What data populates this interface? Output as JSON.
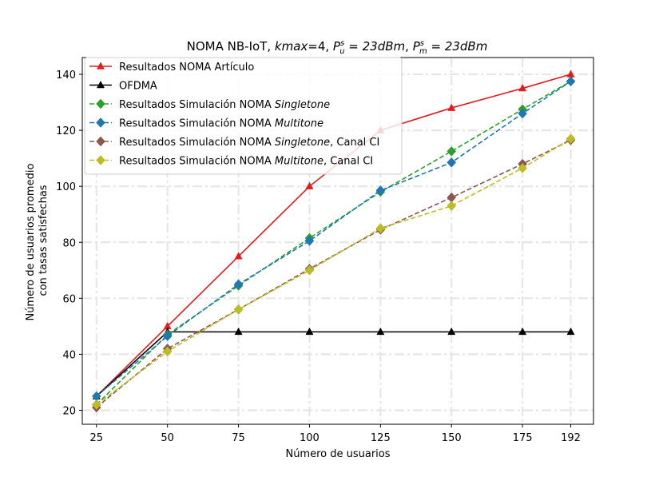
{
  "chart_data": {
    "type": "line",
    "title_main": "NOMA NB-IoT, ",
    "title_kmax": "kmax",
    "title_kmax_value": "=4, ",
    "title_pu": "P",
    "title_pu_sup": "s",
    "title_pu_sub": "u",
    "title_pu_value": " = 23dBm",
    "title_sep": ", ",
    "title_pm": "P",
    "title_pm_sup": "s",
    "title_pm_sub": "m",
    "title_pm_value": " = 23dBm",
    "xlabel": "Número de usuarios",
    "ylabel_line1": "Número de usuarios promedio",
    "ylabel_line2": "con tasas satisfechas",
    "x": [
      25,
      50,
      75,
      100,
      125,
      150,
      175,
      192
    ],
    "x_ticks": [
      "25",
      "50",
      "75",
      "100",
      "125",
      "150",
      "175",
      "192"
    ],
    "xlim": [
      20,
      200
    ],
    "ylim": [
      15,
      146
    ],
    "y_ticks": [
      20,
      40,
      60,
      80,
      100,
      120,
      140
    ],
    "grid": true,
    "legend_position": "upper left",
    "series": [
      {
        "name": "Resultados NOMA Artículo",
        "name_parts": [
          {
            "text": "Resultados NOMA Artículo",
            "italic": false
          }
        ],
        "color": "#e41a1c",
        "marker": "triangle",
        "dashed": false,
        "values": [
          25,
          50,
          75,
          100,
          120,
          128,
          135,
          140
        ]
      },
      {
        "name": "OFDMA",
        "name_parts": [
          {
            "text": "OFDMA",
            "italic": false
          }
        ],
        "color": "#000000",
        "marker": "triangle",
        "dashed": false,
        "values": [
          25,
          48,
          48,
          48,
          48,
          48,
          48,
          48
        ]
      },
      {
        "name": "Resultados Simulación NOMA Singletone",
        "name_parts": [
          {
            "text": "Resultados Simulación NOMA ",
            "italic": false
          },
          {
            "text": "Singletone",
            "italic": true
          }
        ],
        "color": "#2ca02c",
        "marker": "diamond",
        "dashed": true,
        "values": [
          22,
          47,
          64.5,
          81.5,
          98,
          112.5,
          127.5,
          137.5
        ]
      },
      {
        "name": "Resultados Simulación NOMA Multitone",
        "name_parts": [
          {
            "text": "Resultados Simulación NOMA ",
            "italic": false
          },
          {
            "text": "Multitone",
            "italic": true
          }
        ],
        "color": "#1f77b4",
        "marker": "diamond",
        "dashed": true,
        "values": [
          25,
          46.5,
          65,
          80.5,
          98.5,
          108.5,
          126,
          137.5
        ]
      },
      {
        "name": "Resultados Simulación NOMA Singletone, Canal CI",
        "name_parts": [
          {
            "text": "Resultados Simulación NOMA ",
            "italic": false
          },
          {
            "text": "Singletone",
            "italic": true
          },
          {
            "text": ", Canal CI",
            "italic": false
          }
        ],
        "color": "#8c564b",
        "marker": "diamond",
        "dashed": true,
        "values": [
          21,
          42,
          56,
          70.5,
          84.5,
          96,
          108,
          116.5
        ]
      },
      {
        "name": "Resultados Simulación NOMA Multitone, Canal CI",
        "name_parts": [
          {
            "text": "Resultados Simulación NOMA ",
            "italic": false
          },
          {
            "text": "Multitone",
            "italic": true
          },
          {
            "text": ", Canal CI",
            "italic": false
          }
        ],
        "color": "#bcbd22",
        "marker": "diamond",
        "dashed": true,
        "values": [
          22,
          41,
          56,
          70,
          85,
          93,
          106.5,
          117
        ]
      }
    ]
  }
}
